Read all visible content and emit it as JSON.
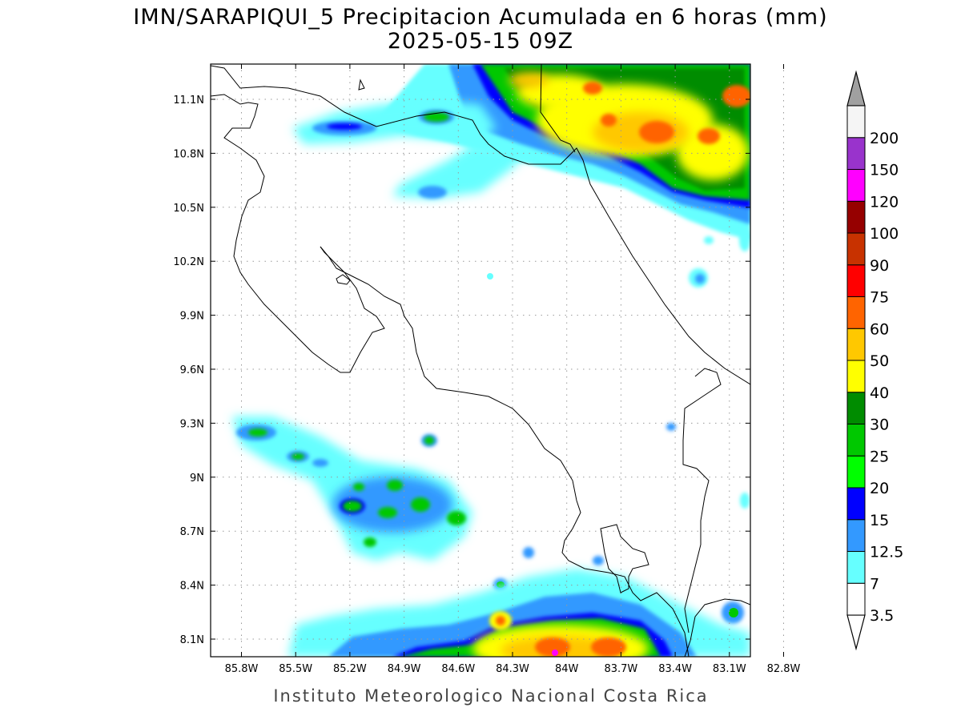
{
  "title_line1": "IMN/SARAPIQUI_5 Precipitacion Acumulada en 6 horas (mm)",
  "title_line2": "2025-05-15 09Z",
  "footer": "Instituto Meteorologico Nacional Costa Rica",
  "map": {
    "lon_range": [
      -86.0,
      -83.0
    ],
    "lat_range": [
      8.0,
      11.3
    ],
    "lon_ticks": [
      "85.8W",
      "85.5W",
      "85.2W",
      "84.9W",
      "84.6W",
      "84.3W",
      "84W",
      "83.7W",
      "83.4W",
      "83.1W",
      "82.8W"
    ],
    "lat_ticks": [
      "11.1N",
      "10.8N",
      "10.5N",
      "10.2N",
      "9.9N",
      "9.6N",
      "9.3N",
      "9N",
      "8.7N",
      "8.4N",
      "8.1N"
    ],
    "grid": "dotted"
  },
  "colorbar": {
    "labels": [
      "3.5",
      "7",
      "12.5",
      "15",
      "20",
      "25",
      "30",
      "40",
      "50",
      "60",
      "75",
      "90",
      "100",
      "120",
      "150",
      "200"
    ],
    "colors": [
      "#ffffff",
      "#66ffff",
      "#3399ff",
      "#0000ff",
      "#00ff00",
      "#00c800",
      "#008c00",
      "#ffff00",
      "#ffc800",
      "#ff6400",
      "#ff0000",
      "#c83200",
      "#960000",
      "#ff00ff",
      "#9933cc",
      "#f5f5f5"
    ],
    "max_arrow_color": "#a0a0a0",
    "min_arrow_color": "#ffffff"
  }
}
